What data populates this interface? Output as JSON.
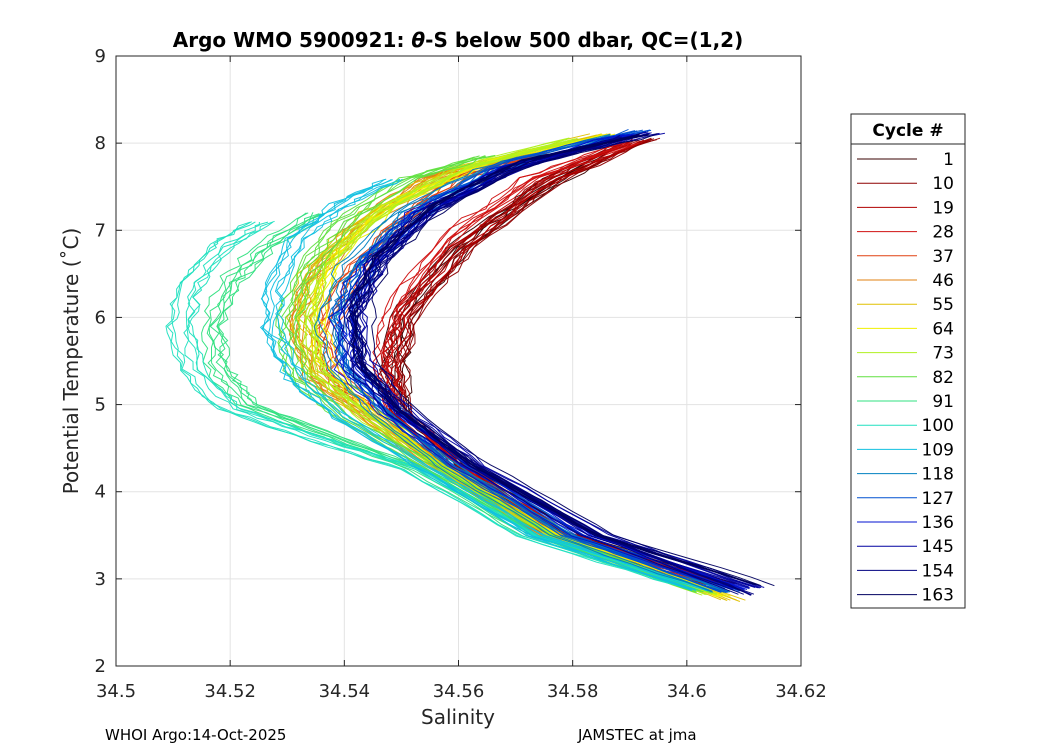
{
  "chart_data": {
    "type": "line",
    "title": "Argo WMO 5900921: θ-S below 500 dbar,  QC=(1,2)",
    "title_parts": {
      "prefix": "Argo WMO 5900921: ",
      "theta": "θ",
      "suffix": "-S below 500 dbar,  QC=(1,2)"
    },
    "xlabel": "Salinity",
    "ylabel": "Potential Temperature (˚C)",
    "xlim": [
      34.5,
      34.62
    ],
    "ylim": [
      2,
      9
    ],
    "x_ticks": [
      34.5,
      34.52,
      34.54,
      34.56,
      34.58,
      34.6,
      34.62
    ],
    "x_tick_labels": [
      "34.5",
      "34.52",
      "34.54",
      "34.56",
      "34.58",
      "34.6",
      "34.62"
    ],
    "y_ticks": [
      2,
      3,
      4,
      5,
      6,
      7,
      8,
      9
    ],
    "y_tick_labels": [
      "2",
      "3",
      "4",
      "5",
      "6",
      "7",
      "8",
      "9"
    ],
    "grid": true,
    "legend": {
      "title": "Cycle #",
      "placement": "right",
      "entries": [
        {
          "label": "1",
          "color": "#3a0000"
        },
        {
          "label": "10",
          "color": "#8e0000"
        },
        {
          "label": "19",
          "color": "#b00000"
        },
        {
          "label": "28",
          "color": "#d01010"
        },
        {
          "label": "37",
          "color": "#e04010"
        },
        {
          "label": "46",
          "color": "#e08010"
        },
        {
          "label": "55",
          "color": "#e0c000"
        },
        {
          "label": "64",
          "color": "#f0f000"
        },
        {
          "label": "73",
          "color": "#b0f020"
        },
        {
          "label": "82",
          "color": "#60e040"
        },
        {
          "label": "91",
          "color": "#30e080"
        },
        {
          "label": "100",
          "color": "#20e0c0"
        },
        {
          "label": "109",
          "color": "#10c0e0"
        },
        {
          "label": "118",
          "color": "#0080c0"
        },
        {
          "label": "127",
          "color": "#0050d0"
        },
        {
          "label": "136",
          "color": "#0010d0"
        },
        {
          "label": "145",
          "color": "#0000a0"
        },
        {
          "label": "154",
          "color": "#000080"
        },
        {
          "label": "163",
          "color": "#000060"
        }
      ]
    },
    "series": [
      {
        "name": "1",
        "color": "#3a0000",
        "points": [
          [
            34.607,
            2.95
          ],
          [
            34.58,
            3.5
          ],
          [
            34.56,
            4.3
          ],
          [
            34.55,
            4.9
          ],
          [
            34.549,
            5.4
          ],
          [
            34.55,
            6.0
          ],
          [
            34.56,
            6.8
          ],
          [
            34.575,
            7.5
          ],
          [
            34.59,
            8.0
          ]
        ]
      },
      {
        "name": "10",
        "color": "#8e0000",
        "points": [
          [
            34.605,
            2.93
          ],
          [
            34.578,
            3.5
          ],
          [
            34.56,
            4.3
          ],
          [
            34.55,
            4.9
          ],
          [
            34.549,
            5.4
          ],
          [
            34.551,
            6.0
          ],
          [
            34.561,
            6.8
          ],
          [
            34.577,
            7.6
          ],
          [
            34.593,
            8.05
          ]
        ]
      },
      {
        "name": "19",
        "color": "#b00000",
        "points": [
          [
            34.603,
            2.97
          ],
          [
            34.577,
            3.55
          ],
          [
            34.559,
            4.3
          ],
          [
            34.549,
            4.9
          ],
          [
            34.548,
            5.4
          ],
          [
            34.55,
            6.0
          ],
          [
            34.56,
            6.8
          ],
          [
            34.575,
            7.55
          ],
          [
            34.591,
            8.03
          ]
        ]
      },
      {
        "name": "28",
        "color": "#d01010",
        "points": [
          [
            34.604,
            2.96
          ],
          [
            34.578,
            3.5
          ],
          [
            34.56,
            4.3
          ],
          [
            34.549,
            4.95
          ],
          [
            34.547,
            5.5
          ],
          [
            34.549,
            6.1
          ],
          [
            34.558,
            6.9
          ],
          [
            34.573,
            7.6
          ],
          [
            34.59,
            8.0
          ]
        ]
      },
      {
        "name": "37",
        "color": "#e04010",
        "points": [
          [
            34.602,
            2.9
          ],
          [
            34.575,
            3.5
          ],
          [
            34.557,
            4.3
          ],
          [
            34.546,
            4.9
          ],
          [
            34.538,
            5.3
          ],
          [
            34.536,
            5.8
          ],
          [
            34.54,
            6.4
          ],
          [
            34.548,
            7.0
          ],
          [
            34.56,
            7.6
          ],
          [
            34.575,
            7.9
          ]
        ]
      },
      {
        "name": "46",
        "color": "#e08010",
        "points": [
          [
            34.605,
            2.85
          ],
          [
            34.576,
            3.5
          ],
          [
            34.556,
            4.3
          ],
          [
            34.544,
            4.9
          ],
          [
            34.535,
            5.3
          ],
          [
            34.532,
            5.9
          ],
          [
            34.535,
            6.5
          ],
          [
            34.542,
            7.0
          ],
          [
            34.555,
            7.6
          ],
          [
            34.57,
            7.85
          ]
        ]
      },
      {
        "name": "55",
        "color": "#e0c000",
        "points": [
          [
            34.608,
            2.75
          ],
          [
            34.578,
            3.5
          ],
          [
            34.557,
            4.3
          ],
          [
            34.543,
            4.9
          ],
          [
            34.534,
            5.4
          ],
          [
            34.532,
            6.0
          ],
          [
            34.535,
            6.6
          ],
          [
            34.545,
            7.2
          ],
          [
            34.56,
            7.7
          ],
          [
            34.585,
            8.1
          ]
        ]
      },
      {
        "name": "64",
        "color": "#f0f000",
        "points": [
          [
            34.606,
            2.8
          ],
          [
            34.577,
            3.5
          ],
          [
            34.557,
            4.3
          ],
          [
            34.544,
            4.95
          ],
          [
            34.536,
            5.5
          ],
          [
            34.535,
            6.1
          ],
          [
            34.538,
            6.7
          ],
          [
            34.548,
            7.3
          ],
          [
            34.565,
            7.8
          ],
          [
            34.586,
            8.1
          ]
        ]
      },
      {
        "name": "73",
        "color": "#b0f020",
        "points": [
          [
            34.604,
            2.82
          ],
          [
            34.576,
            3.5
          ],
          [
            34.556,
            4.3
          ],
          [
            34.543,
            4.9
          ],
          [
            34.535,
            5.4
          ],
          [
            34.533,
            6.0
          ],
          [
            34.536,
            6.6
          ],
          [
            34.546,
            7.2
          ],
          [
            34.56,
            7.7
          ],
          [
            34.58,
            8.05
          ]
        ]
      },
      {
        "name": "82",
        "color": "#60e040",
        "points": [
          [
            34.603,
            2.85
          ],
          [
            34.575,
            3.5
          ],
          [
            34.555,
            4.3
          ],
          [
            34.54,
            4.85
          ],
          [
            34.532,
            5.3
          ],
          [
            34.53,
            5.9
          ],
          [
            34.533,
            6.5
          ],
          [
            34.54,
            7.1
          ],
          [
            34.552,
            7.6
          ],
          [
            34.565,
            7.85
          ]
        ]
      },
      {
        "name": "91",
        "color": "#30e080",
        "points": [
          [
            34.602,
            2.88
          ],
          [
            34.573,
            3.5
          ],
          [
            34.553,
            4.25
          ],
          [
            34.535,
            4.7
          ],
          [
            34.523,
            5.0
          ],
          [
            34.518,
            5.4
          ],
          [
            34.517,
            5.9
          ],
          [
            34.52,
            6.4
          ],
          [
            34.526,
            6.8
          ],
          [
            34.535,
            7.2
          ]
        ]
      },
      {
        "name": "100",
        "color": "#20e0c0",
        "points": [
          [
            34.601,
            2.9
          ],
          [
            34.572,
            3.5
          ],
          [
            34.552,
            4.25
          ],
          [
            34.533,
            4.65
          ],
          [
            34.52,
            4.95
          ],
          [
            34.513,
            5.4
          ],
          [
            34.511,
            5.9
          ],
          [
            34.513,
            6.4
          ],
          [
            34.518,
            6.8
          ],
          [
            34.525,
            7.1
          ]
        ]
      },
      {
        "name": "109",
        "color": "#10c0e0",
        "points": [
          [
            34.603,
            2.87
          ],
          [
            34.574,
            3.5
          ],
          [
            34.554,
            4.3
          ],
          [
            34.54,
            4.85
          ],
          [
            34.532,
            5.3
          ],
          [
            34.528,
            5.8
          ],
          [
            34.528,
            6.3
          ],
          [
            34.532,
            6.9
          ],
          [
            34.54,
            7.3
          ],
          [
            34.549,
            7.58
          ]
        ]
      },
      {
        "name": "118",
        "color": "#0080c0",
        "points": [
          [
            34.606,
            2.85
          ],
          [
            34.578,
            3.5
          ],
          [
            34.558,
            4.3
          ],
          [
            34.546,
            4.9
          ],
          [
            34.539,
            5.4
          ],
          [
            34.537,
            6.0
          ],
          [
            34.541,
            6.6
          ],
          [
            34.55,
            7.2
          ],
          [
            34.565,
            7.7
          ],
          [
            34.588,
            8.1
          ]
        ]
      },
      {
        "name": "127",
        "color": "#0050d0",
        "points": [
          [
            34.608,
            2.85
          ],
          [
            34.58,
            3.5
          ],
          [
            34.56,
            4.3
          ],
          [
            34.548,
            4.95
          ],
          [
            34.541,
            5.5
          ],
          [
            34.54,
            6.1
          ],
          [
            34.545,
            6.7
          ],
          [
            34.555,
            7.3
          ],
          [
            34.57,
            7.8
          ],
          [
            34.592,
            8.15
          ]
        ]
      },
      {
        "name": "136",
        "color": "#0010d0",
        "points": [
          [
            34.609,
            2.88
          ],
          [
            34.582,
            3.5
          ],
          [
            34.561,
            4.3
          ],
          [
            34.548,
            4.9
          ],
          [
            34.541,
            5.4
          ],
          [
            34.54,
            6.0
          ],
          [
            34.544,
            6.6
          ],
          [
            34.553,
            7.2
          ],
          [
            34.568,
            7.7
          ],
          [
            34.59,
            8.1
          ]
        ]
      },
      {
        "name": "145",
        "color": "#0000a0",
        "points": [
          [
            34.612,
            2.9
          ],
          [
            34.585,
            3.5
          ],
          [
            34.563,
            4.3
          ],
          [
            34.55,
            4.95
          ],
          [
            34.543,
            5.5
          ],
          [
            34.542,
            6.1
          ],
          [
            34.546,
            6.7
          ],
          [
            34.556,
            7.3
          ],
          [
            34.572,
            7.8
          ],
          [
            34.594,
            8.12
          ]
        ]
      },
      {
        "name": "154",
        "color": "#000080",
        "points": [
          [
            34.61,
            2.82
          ],
          [
            34.583,
            3.5
          ],
          [
            34.562,
            4.3
          ],
          [
            34.549,
            4.9
          ],
          [
            34.542,
            5.4
          ],
          [
            34.541,
            6.0
          ],
          [
            34.545,
            6.6
          ],
          [
            34.554,
            7.2
          ],
          [
            34.569,
            7.7
          ],
          [
            34.589,
            8.08
          ]
        ]
      },
      {
        "name": "163",
        "color": "#000060",
        "points": [
          [
            34.614,
            2.93
          ],
          [
            34.586,
            3.5
          ],
          [
            34.564,
            4.3
          ],
          [
            34.551,
            4.95
          ],
          [
            34.544,
            5.5
          ],
          [
            34.543,
            6.1
          ],
          [
            34.547,
            6.7
          ],
          [
            34.557,
            7.3
          ],
          [
            34.573,
            7.8
          ],
          [
            34.594,
            8.1
          ]
        ]
      }
    ]
  },
  "footer": {
    "left": "WHOI Argo:14-Oct-2025",
    "right": "JAMSTEC at jma"
  }
}
